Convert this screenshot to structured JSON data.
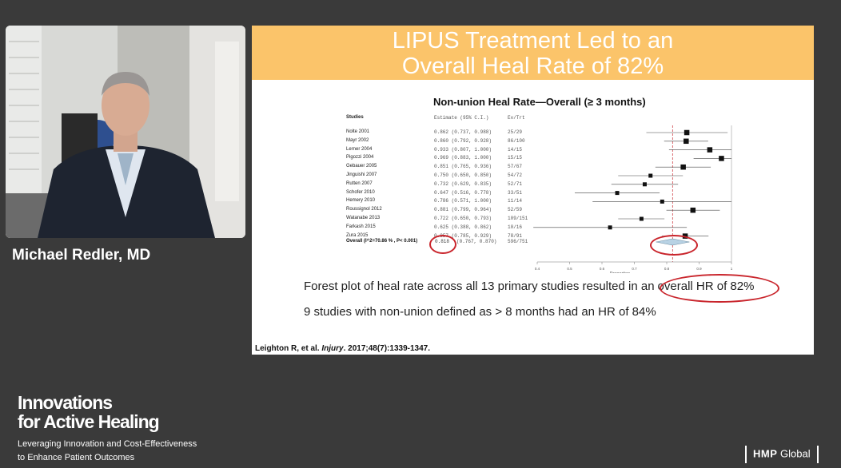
{
  "speaker": {
    "name": "Michael Redler, MD"
  },
  "slide": {
    "title_line1": "LIPUS Treatment Led to an",
    "title_line2": "Overall Heal Rate of 82%",
    "plot_title": "Non-union Heal Rate—Overall (≥ 3 months)",
    "columns": {
      "studies": "Studies",
      "estimate": "Estimate (95% C.I.)",
      "evtrt": "Ev/Trt"
    },
    "studies": [
      {
        "name": "Nolte 2001",
        "estimate": "0.862 (0.737, 0.988)",
        "evtrt": "25/29",
        "est": 0.862,
        "lo": 0.737,
        "hi": 0.988
      },
      {
        "name": "Mayr 2002",
        "estimate": "0.860 (0.792, 0.928)",
        "evtrt": "86/100",
        "est": 0.86,
        "lo": 0.792,
        "hi": 0.928
      },
      {
        "name": "Lerner 2004",
        "estimate": "0.933 (0.807, 1.000)",
        "evtrt": "14/15",
        "est": 0.933,
        "lo": 0.807,
        "hi": 1.0
      },
      {
        "name": "Pigozzi 2004",
        "estimate": "0.969 (0.883, 1.000)",
        "evtrt": "15/15",
        "est": 0.969,
        "lo": 0.883,
        "hi": 1.0
      },
      {
        "name": "Gebauer 2005",
        "estimate": "0.851 (0.765, 0.936)",
        "evtrt": "57/67",
        "est": 0.851,
        "lo": 0.765,
        "hi": 0.936
      },
      {
        "name": "Jinguishi 2007",
        "estimate": "0.750 (0.650, 0.850)",
        "evtrt": "54/72",
        "est": 0.75,
        "lo": 0.65,
        "hi": 0.85
      },
      {
        "name": "Rutten 2007",
        "estimate": "0.732 (0.629, 0.835)",
        "evtrt": "52/71",
        "est": 0.732,
        "lo": 0.629,
        "hi": 0.835
      },
      {
        "name": "Schofer 2010",
        "estimate": "0.647 (0.516, 0.778)",
        "evtrt": "33/51",
        "est": 0.647,
        "lo": 0.516,
        "hi": 0.778
      },
      {
        "name": "Hemery 2010",
        "estimate": "0.786 (0.571, 1.000)",
        "evtrt": "11/14",
        "est": 0.786,
        "lo": 0.571,
        "hi": 1.0
      },
      {
        "name": "Roussignol 2012",
        "estimate": "0.881 (0.799, 0.964)",
        "evtrt": "52/59",
        "est": 0.881,
        "lo": 0.799,
        "hi": 0.964
      },
      {
        "name": "Watanabe 2013",
        "estimate": "0.722 (0.650, 0.793)",
        "evtrt": "109/151",
        "est": 0.722,
        "lo": 0.65,
        "hi": 0.793
      },
      {
        "name": "Farkash 2015",
        "estimate": "0.625 (0.388, 0.862)",
        "evtrt": "10/16",
        "est": 0.625,
        "lo": 0.388,
        "hi": 0.862
      },
      {
        "name": "Zura 2015",
        "estimate": "0.857 (0.785, 0.929)",
        "evtrt": "78/91",
        "est": 0.857,
        "lo": 0.785,
        "hi": 0.929
      }
    ],
    "overall": {
      "label": "Overall (I^2=70.86 % , P< 0.001)",
      "point": "0.818",
      "ci": "(0.767, 0.870)",
      "evtrt": "596/751",
      "est": 0.818,
      "lo": 0.767,
      "hi": 0.87
    },
    "bullet1_part1": "Forest plot of heal rate across all 13 primary studies resulted in an",
    "bullet1_part2": "overall HR of 82%",
    "bullet2": "9 studies with non-union defined as > 8 months had an HR of 84%",
    "citation_authors": "Leighton R, et al.",
    "citation_journal": "Injury",
    "citation_details": ". 2017;48(7):1339-1347."
  },
  "chart_data": {
    "type": "scatter",
    "xlabel": "Proportion",
    "xlim": [
      0.4,
      1.0
    ],
    "xticks": [
      "0.4",
      "0.5",
      "0.6",
      "0.7",
      "0.8",
      "0.9",
      "1"
    ],
    "reference_line": 0.818,
    "accent_color": "#c9252c"
  },
  "branding": {
    "title_line1": "Innovations",
    "title_line2": "for Active Healing",
    "subtitle_line1": "Leveraging Innovation and Cost-Effectiveness",
    "subtitle_line2": "to Enhance Patient Outcomes",
    "logo_hmp": "HMP",
    "logo_global": "Global"
  }
}
